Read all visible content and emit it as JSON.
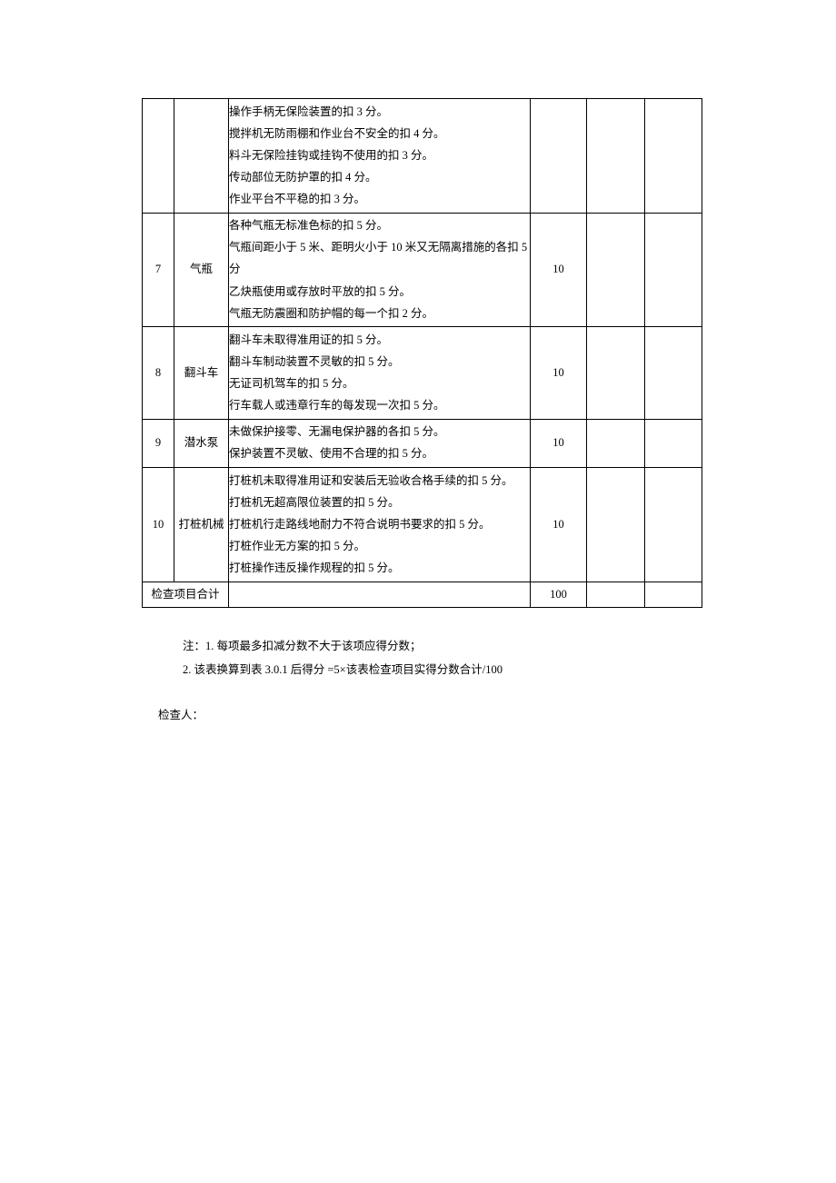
{
  "fontColor": "#000000",
  "borderColor": "#000000",
  "backgroundColor": "#ffffff",
  "table": {
    "rows": [
      {
        "num": "",
        "name": "",
        "desc": [
          "操作手柄无保险装置的扣 3 分。",
          "搅拌机无防雨棚和作业台不安全的扣 4 分。",
          "料斗无保险挂钩或挂钩不使用的扣 3 分。",
          "传动部位无防护罩的扣 4 分。",
          "作业平台不平稳的扣 3 分。"
        ],
        "score": ""
      },
      {
        "num": "7",
        "name": "气瓶",
        "desc": [
          "各种气瓶无标准色标的扣 5 分。",
          "气瓶间距小于 5 米、距明火小于 10 米又无隔离措施的各扣 5",
          "分",
          "乙炔瓶使用或存放时平放的扣 5 分。",
          "气瓶无防震圈和防护帽的每一个扣 2 分。"
        ],
        "score": "10"
      },
      {
        "num": "8",
        "name": "翻斗车",
        "desc": [
          "翻斗车未取得准用证的扣 5 分。",
          "翻斗车制动装置不灵敏的扣 5 分。",
          "无证司机驾车的扣 5 分。",
          "行车载人或违章行车的每发现一次扣 5 分。"
        ],
        "score": "10"
      },
      {
        "num": "9",
        "name": "潜水泵",
        "desc": [
          "未做保护接零、无漏电保护器的各扣 5 分。",
          "保护装置不灵敏、使用不合理的扣 5 分。"
        ],
        "score": "10"
      },
      {
        "num": "10",
        "name": "打桩机械",
        "desc": [
          "打桩机未取得准用证和安装后无验收合格手续的扣 5 分。",
          "打桩机无超高限位装置的扣 5 分。",
          "打桩机行走路线地耐力不符合说明书要求的扣 5 分。",
          "打桩作业无方案的扣 5 分。",
          "打桩操作违反操作规程的扣 5 分。"
        ],
        "score": "10"
      }
    ],
    "totalLabel": "检查项目合计",
    "totalScore": "100"
  },
  "notes": {
    "line1": "注：1. 每项最多扣减分数不大于该项应得分数；",
    "line2": "2. 该表换算到表 3.0.1  后得分  =5×该表检查项目实得分数合计/100"
  },
  "inspector": "检查人："
}
